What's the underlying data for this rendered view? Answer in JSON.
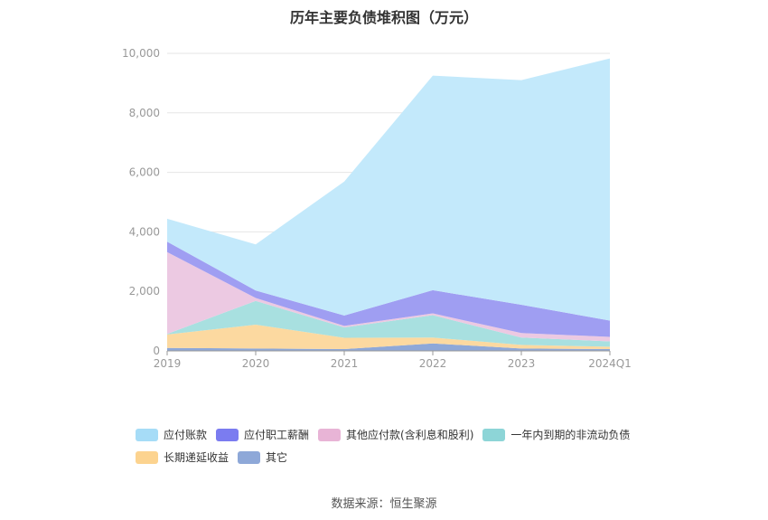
{
  "chart_data": {
    "type": "area",
    "stacked": true,
    "title": "历年主要负债堆积图（万元）",
    "categories": [
      "2019",
      "2020",
      "2021",
      "2022",
      "2023",
      "2024Q1"
    ],
    "ylim": [
      0,
      10000
    ],
    "yticks": [
      "0",
      "2,000",
      "4,000",
      "6,000",
      "8,000",
      "10,000"
    ],
    "grid": true,
    "legend_position": "bottom",
    "series": [
      {
        "name": "其它",
        "color": "#8ea8d8",
        "values": [
          100,
          80,
          60,
          250,
          80,
          60
        ]
      },
      {
        "name": "长期递延收益",
        "color": "#fcd9a0",
        "values": [
          450,
          800,
          380,
          200,
          120,
          80
        ]
      },
      {
        "name": "一年内到期的非流动负债",
        "color": "#a8e0e0",
        "values": [
          20,
          800,
          350,
          750,
          250,
          180
        ]
      },
      {
        "name": "其他应付款(含利息和股利)",
        "color": "#ecc9e2",
        "values": [
          2750,
          100,
          50,
          60,
          150,
          150
        ]
      },
      {
        "name": "应付职工薪酬",
        "color": "#9f9ef2",
        "values": [
          350,
          250,
          350,
          780,
          950,
          550
        ]
      },
      {
        "name": "应付账款",
        "color": "#c3e9fb",
        "values": [
          770,
          1550,
          4500,
          7210,
          7550,
          8810
        ]
      }
    ]
  },
  "legend": [
    [
      {
        "label": "应付账款",
        "color": "#a6dcf7"
      },
      {
        "label": "应付职工薪酬",
        "color": "#7b7cf0"
      },
      {
        "label": "其他应付款(含利息和股利)",
        "color": "#e8b4d6"
      },
      {
        "label": "一年内到期的非流动负债",
        "color": "#8dd5d7"
      }
    ],
    [
      {
        "label": "长期递延收益",
        "color": "#fcd38f"
      },
      {
        "label": "其它",
        "color": "#8ea8d8"
      }
    ]
  ],
  "source": "数据来源：恒生聚源"
}
